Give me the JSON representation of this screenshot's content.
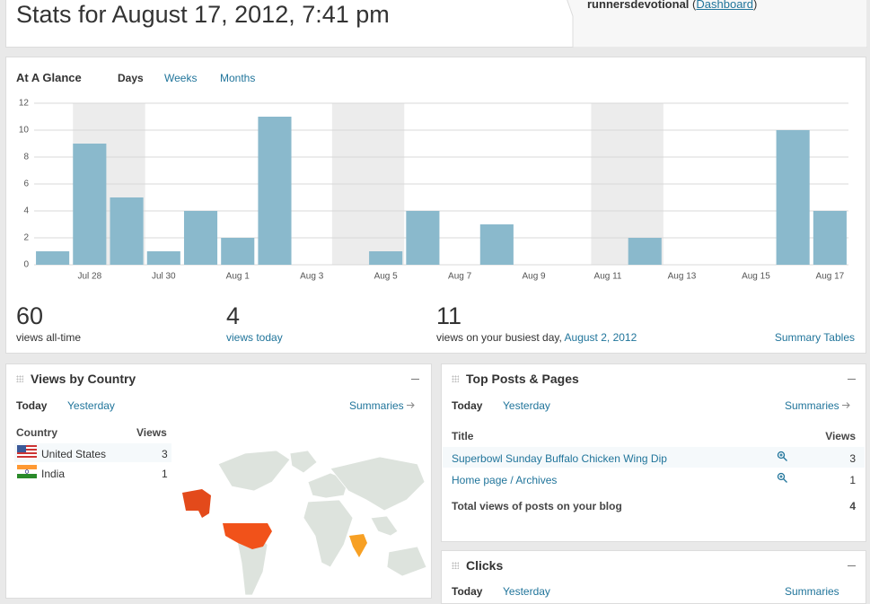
{
  "header": {
    "title": "Stats for August 17, 2012, 7:41 pm",
    "user": "runnersdevotional",
    "paren_open": "(",
    "link": "Dashboard",
    "paren_close": ")"
  },
  "glance": {
    "title": "At A Glance",
    "tabs": [
      "Days",
      "Weeks",
      "Months"
    ]
  },
  "chart_data": {
    "type": "bar",
    "color": "#8ab9cc",
    "grid": true,
    "categories": [
      null,
      "Jul 28",
      null,
      "Jul 30",
      null,
      "Aug 1",
      null,
      "Aug 3",
      null,
      "Aug 5",
      null,
      "Aug 7",
      null,
      "Aug 9",
      null,
      "Aug 11",
      null,
      "Aug 13",
      null,
      "Aug 15",
      null,
      "Aug 17"
    ],
    "values": [
      1,
      9,
      5,
      1,
      4,
      2,
      11,
      0,
      0,
      1,
      4,
      0,
      3,
      0,
      0,
      0,
      2,
      0,
      0,
      0,
      10,
      4
    ],
    "ylim": [
      0,
      12
    ],
    "yticks": [
      0,
      2,
      4,
      6,
      8,
      10,
      12
    ]
  },
  "summary": {
    "total": 60,
    "total_label": "views all-time",
    "today": 4,
    "today_label": "views today",
    "best": 11,
    "best_label": "views on your busiest day,",
    "best_date": "August 2, 2012",
    "link": "Summary Tables"
  },
  "countries": {
    "title": "Views by Country",
    "tabs": [
      "Today",
      "Yesterday"
    ],
    "summaries": "Summaries",
    "columns": [
      "Country",
      "Views"
    ],
    "rows": [
      [
        "United States",
        3
      ],
      [
        "India",
        1
      ]
    ]
  },
  "top_posts": {
    "title": "Top Posts & Pages",
    "tabs": [
      "Today",
      "Yesterday"
    ],
    "summaries": "Summaries",
    "columns": [
      "Title",
      "Views"
    ],
    "rows": [
      [
        "Superbowl Sunday Buffalo Chicken Wing Dip",
        3
      ],
      [
        "Home page / Archives",
        1
      ]
    ],
    "total_label": "Total views of posts on your blog",
    "total": 4
  },
  "clicks": {
    "title": "Clicks",
    "tabs": [
      "Today",
      "Yesterday"
    ],
    "summaries": "Summaries"
  }
}
